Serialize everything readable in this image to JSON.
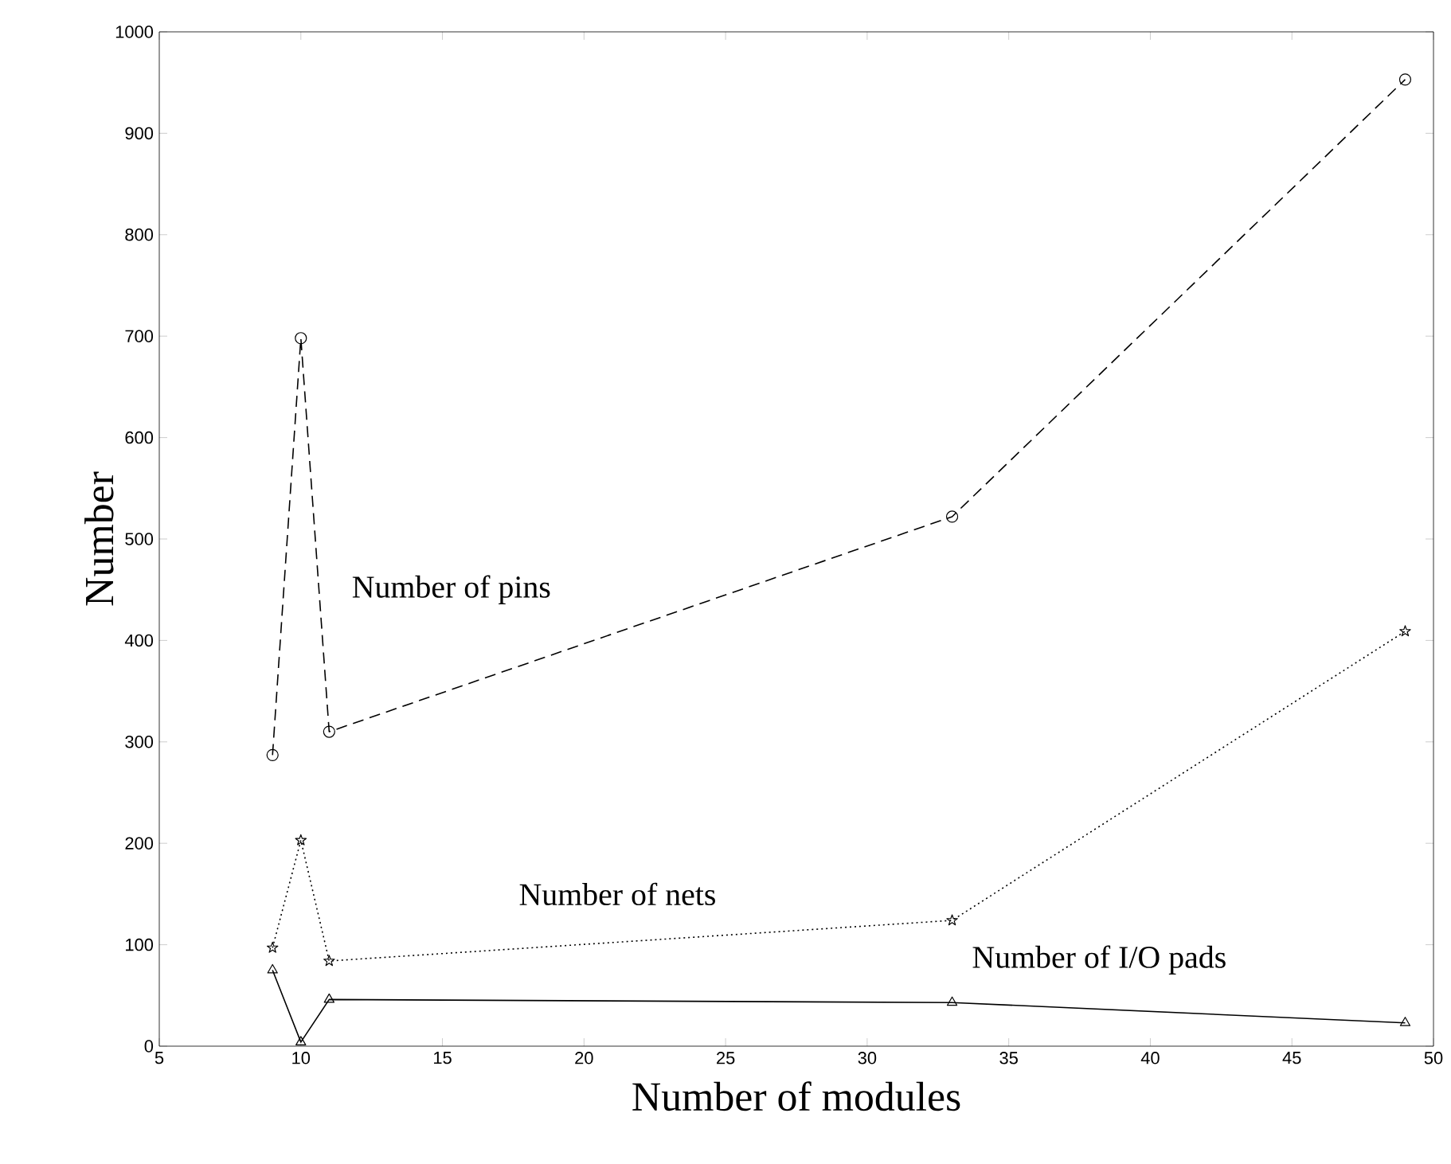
{
  "chart_data": {
    "type": "line",
    "xlabel": "Number of modules",
    "ylabel": "Number",
    "x": [
      9,
      10,
      11,
      33,
      49
    ],
    "series": [
      {
        "name": "Number of pins",
        "color": "#000000",
        "marker": "circle",
        "line_style": "dashed",
        "values": [
          287,
          698,
          310,
          522,
          953
        ]
      },
      {
        "name": "Number of nets",
        "color": "#000000",
        "marker": "star",
        "line_style": "dotted",
        "values": [
          97,
          203,
          84,
          124,
          409
        ]
      },
      {
        "name": "Number of I/O pads",
        "color": "#000000",
        "marker": "triangle",
        "line_style": "solid",
        "values": [
          75,
          4,
          46,
          43,
          23
        ]
      }
    ],
    "xlim": [
      5,
      50
    ],
    "ylim": [
      0,
      1000
    ],
    "xticks": [
      5,
      10,
      15,
      20,
      25,
      30,
      35,
      40,
      45,
      50
    ],
    "yticks": [
      0,
      100,
      200,
      300,
      400,
      500,
      600,
      700,
      800,
      900,
      1000
    ],
    "grid": false
  }
}
